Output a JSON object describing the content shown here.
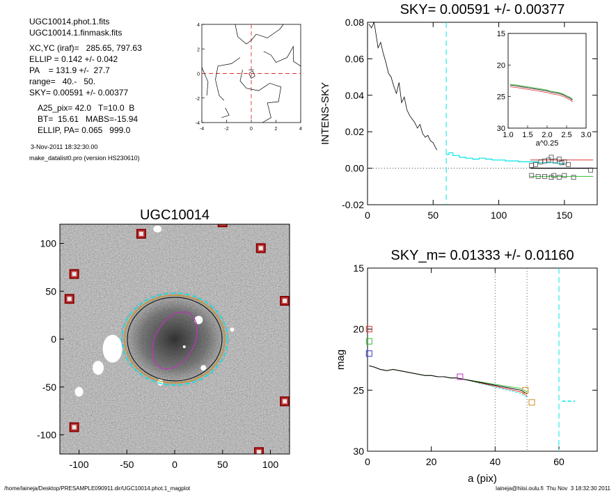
{
  "info": {
    "lines": [
      "UGC10014.phot.1.fits",
      "UGC10014.1.finmask.fits",
      "XC,YC (iraf)=   285.65, 797.63",
      "ELLIP = 0.142 +/- 0.042",
      "PA    = 131.9 +/-  27.7",
      "range=   40.-   50.",
      "SKY= 0.00591 +/- 0.00377",
      "A25_pix= 42.0   T=10.0  B",
      "BT=  15.61   MABS=-15.94",
      "ELLIP, PA= 0.065   999.0"
    ],
    "date": "3-Nov-2011 18:32:30.00",
    "program": "make_datalist0.pro (version HS230610)"
  },
  "footer": {
    "left": "/home/laineja/Desktop/PRESAMPLE090911.dir/UGC10014.phot.1_magplot",
    "right": "laineja@hiisi.oulu.fi  Thu Nov  3 18:32:30 2011"
  },
  "colors": {
    "cyan": "#00e5e5",
    "red": "#e03030",
    "green": "#30c030",
    "blue": "#3030d0",
    "gray": "#808080",
    "magenta": "#c030c0",
    "orange": "#c89020",
    "darkred": "#8b0000"
  },
  "chart_data": [
    {
      "id": "contour",
      "type": "contour",
      "xlim": [
        -4,
        4
      ],
      "ylim": [
        -4,
        4
      ],
      "xticks": [
        "-4",
        "-2",
        "0",
        "2",
        "4"
      ],
      "yticks": [
        "-4",
        "-2",
        "0",
        "2",
        "4"
      ]
    },
    {
      "id": "sky",
      "type": "line",
      "title": "SKY= 0.00591 +/- 0.00377",
      "ylabel": "INTENS-SKY",
      "xlim": [
        0,
        175
      ],
      "ylim": [
        -0.02,
        0.08
      ],
      "xticks": [
        "0",
        "50",
        "100",
        "150"
      ],
      "yticks": [
        "-0.02",
        "0.00",
        "0.02",
        "0.04",
        "0.06",
        "0.08"
      ],
      "vline_x": 60,
      "profile": [
        [
          1,
          0.079
        ],
        [
          3,
          0.077
        ],
        [
          5,
          0.08
        ],
        [
          7,
          0.071
        ],
        [
          8,
          0.066
        ],
        [
          10,
          0.069
        ],
        [
          12,
          0.063
        ],
        [
          14,
          0.058
        ],
        [
          16,
          0.052
        ],
        [
          18,
          0.05
        ],
        [
          20,
          0.045
        ],
        [
          22,
          0.041
        ],
        [
          24,
          0.047
        ],
        [
          26,
          0.036
        ],
        [
          28,
          0.039
        ],
        [
          30,
          0.032
        ],
        [
          32,
          0.029
        ],
        [
          34,
          0.027
        ],
        [
          36,
          0.025
        ],
        [
          38,
          0.022
        ],
        [
          40,
          0.024
        ],
        [
          42,
          0.019
        ],
        [
          44,
          0.017
        ],
        [
          46,
          0.018
        ],
        [
          48,
          0.015
        ],
        [
          50,
          0.014
        ],
        [
          52,
          0.011
        ],
        [
          53,
          0.01
        ]
      ],
      "outer_cyan": [
        [
          60,
          0.0075
        ],
        [
          62,
          0.0085
        ],
        [
          65,
          0.007
        ],
        [
          70,
          0.006
        ],
        [
          75,
          0.0055
        ],
        [
          80,
          0.005
        ],
        [
          85,
          0.0055
        ],
        [
          90,
          0.005
        ],
        [
          95,
          0.0045
        ],
        [
          100,
          0.0045
        ],
        [
          105,
          0.004
        ],
        [
          110,
          0.004
        ],
        [
          115,
          0.0035
        ],
        [
          120,
          0.0035
        ],
        [
          125,
          0.0035
        ],
        [
          130,
          0.003
        ],
        [
          135,
          0.003
        ],
        [
          140,
          0.003
        ],
        [
          145,
          0.0025
        ],
        [
          150,
          0.0025
        ]
      ],
      "level_red": 0.0045,
      "level_black": 0.0,
      "level_green": -0.0045,
      "level_range": [
        124,
        172
      ],
      "squares": [
        [
          125,
          0.0015
        ],
        [
          128,
          0.002
        ],
        [
          132,
          0.0035
        ],
        [
          135,
          0.004
        ],
        [
          138,
          0.0045
        ],
        [
          140,
          0.006
        ],
        [
          143,
          0.004
        ],
        [
          146,
          0.005
        ],
        [
          148,
          0.003
        ],
        [
          150,
          0.0035
        ],
        [
          153,
          0.002
        ],
        [
          170,
          -0.001
        ],
        [
          125,
          -0.004
        ],
        [
          130,
          -0.0045
        ],
        [
          135,
          -0.0045
        ],
        [
          140,
          -0.005
        ],
        [
          142,
          -0.004
        ],
        [
          146,
          -0.005
        ],
        [
          150,
          -0.004
        ],
        [
          157,
          -0.005
        ]
      ],
      "inset": {
        "xlabel": "a^0.25",
        "xlim": [
          1.0,
          3.0
        ],
        "ylim": [
          15,
          30
        ],
        "xticks": [
          "1.0",
          "1.5",
          "2.0",
          "2.5",
          "3.0"
        ],
        "yticks": [
          "15",
          "20",
          "25",
          "30"
        ],
        "profile": [
          [
            1.05,
            23.2
          ],
          [
            1.2,
            23.3
          ],
          [
            1.4,
            23.5
          ],
          [
            1.6,
            23.7
          ],
          [
            1.8,
            23.9
          ],
          [
            2.0,
            24.1
          ],
          [
            2.1,
            24.3
          ],
          [
            2.2,
            24.4
          ],
          [
            2.3,
            24.5
          ],
          [
            2.4,
            24.7
          ],
          [
            2.5,
            25.0
          ],
          [
            2.6,
            25.3
          ],
          [
            2.65,
            25.6
          ]
        ]
      }
    },
    {
      "id": "image",
      "type": "image",
      "title": "UGC10014",
      "xlim": [
        -120,
        120
      ],
      "ylim": [
        -120,
        120
      ],
      "xticks": [
        "-100",
        "-50",
        "0",
        "50",
        "100"
      ],
      "yticks": [
        "-100",
        "-50",
        "0",
        "50",
        "100"
      ],
      "markers": [
        [
          -35,
          110
        ],
        [
          -105,
          68
        ],
        [
          -110,
          42
        ],
        [
          90,
          95
        ],
        [
          115,
          40
        ],
        [
          115,
          -65
        ],
        [
          -105,
          -92
        ],
        [
          88,
          -118
        ],
        [
          50,
          122
        ]
      ]
    },
    {
      "id": "mag",
      "type": "line",
      "title": "SKY_m=  0.01333 +/- 0.01160",
      "xlabel": "a (pix)",
      "ylabel": "mag",
      "xlim": [
        0,
        72
      ],
      "ylim": [
        30,
        15
      ],
      "xticks": [
        "0",
        "20",
        "40",
        "60"
      ],
      "yticks": [
        "15",
        "20",
        "25",
        "30"
      ],
      "dotted_x": [
        40,
        50
      ],
      "dashed_x": 60,
      "profile": [
        [
          0.5,
          23.0
        ],
        [
          2,
          23.1
        ],
        [
          4,
          23.3
        ],
        [
          6,
          23.4
        ],
        [
          8,
          23.3
        ],
        [
          10,
          23.4
        ],
        [
          12,
          23.5
        ],
        [
          14,
          23.6
        ],
        [
          16,
          23.7
        ],
        [
          18,
          23.8
        ],
        [
          20,
          23.8
        ],
        [
          22,
          23.9
        ],
        [
          24,
          23.9
        ],
        [
          26,
          24.0
        ],
        [
          28,
          24.0
        ],
        [
          30,
          24.1
        ],
        [
          32,
          24.2
        ],
        [
          34,
          24.3
        ],
        [
          36,
          24.4
        ],
        [
          38,
          24.5
        ],
        [
          40,
          24.6
        ],
        [
          42,
          24.7
        ],
        [
          44,
          24.8
        ],
        [
          46,
          24.9
        ],
        [
          48,
          25.0
        ],
        [
          50,
          25.3
        ]
      ],
      "left_squares": [
        [
          0.5,
          20.0,
          "red"
        ],
        [
          0.5,
          21.0,
          "green"
        ],
        [
          0.5,
          22.0,
          "blue"
        ]
      ],
      "end_squares": [
        [
          49.5,
          25.0,
          "orange"
        ],
        [
          51.5,
          26.0,
          "orange"
        ],
        [
          29,
          23.9,
          "magenta"
        ]
      ],
      "cyan_segment": [
        [
          61,
          25.9
        ],
        [
          65,
          25.9
        ]
      ]
    }
  ]
}
